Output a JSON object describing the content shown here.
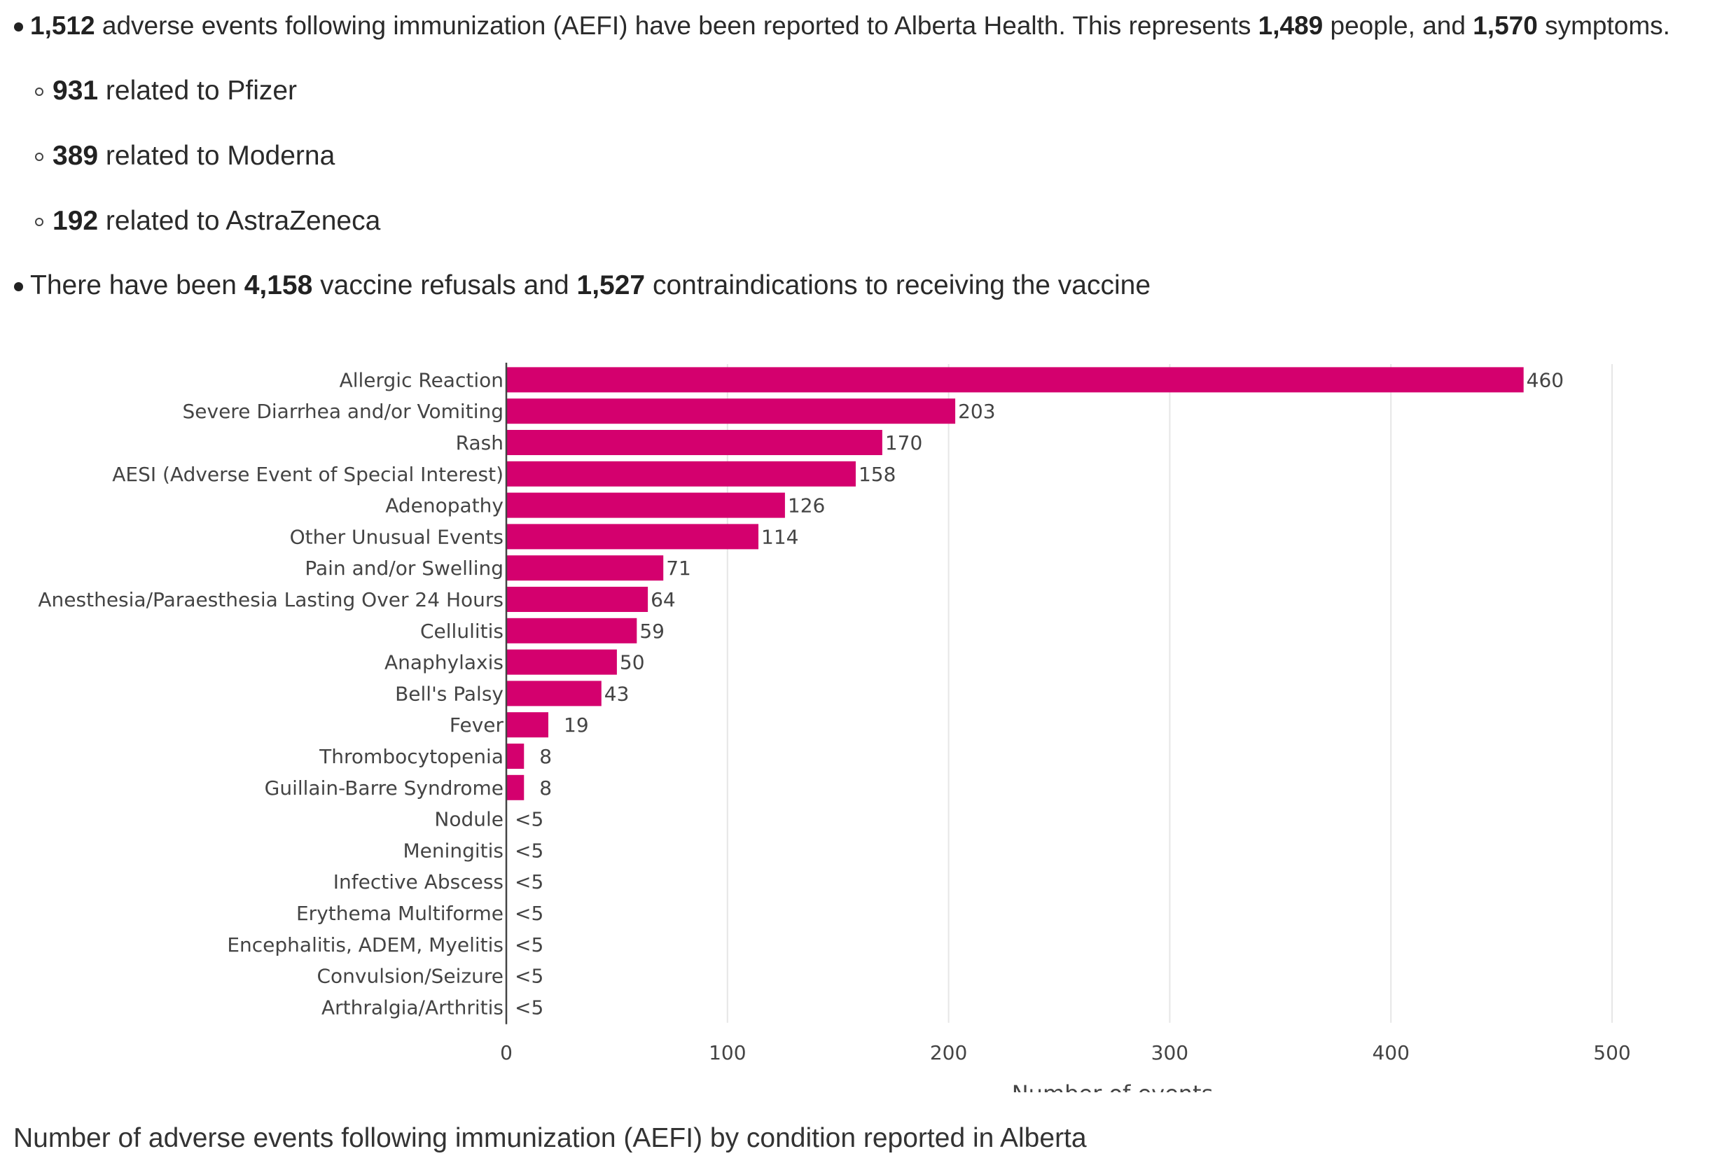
{
  "bullets": {
    "main1": {
      "n1": "1,512",
      "t1": " adverse events following immunization (AEFI) have been reported to Alberta Health. This represents ",
      "n2": "1,489",
      "t2": " people, and ",
      "n3": "1,570",
      "t3": " symptoms."
    },
    "sub": [
      {
        "n": "931",
        "t": " related to Pfizer"
      },
      {
        "n": "389",
        "t": " related to Moderna"
      },
      {
        "n": "192",
        "t": " related to AstraZeneca"
      }
    ],
    "main2": {
      "t0": "There have been ",
      "n1": "4,158",
      "t1": " vaccine refusals and ",
      "n2": "1,527",
      "t2": " contraindications to receiving the vaccine"
    }
  },
  "colors": {
    "bar": "#d4006e",
    "grid": "#e6e6e6",
    "text": "#444444"
  },
  "caption": "Number of adverse events following immunization (AEFI) by condition reported in Alberta",
  "chart_data": {
    "type": "bar",
    "orientation": "horizontal",
    "categories": [
      "Allergic Reaction",
      "Severe Diarrhea and/or Vomiting",
      "Rash",
      "AESI (Adverse Event of Special Interest)",
      "Adenopathy",
      "Other Unusual Events",
      "Pain and/or Swelling",
      "Anesthesia/Paraesthesia Lasting Over 24 Hours",
      "Cellulitis",
      "Anaphylaxis",
      "Bell's Palsy",
      "Fever",
      "Thrombocytopenia",
      "Guillain-Barre Syndrome",
      "Nodule",
      "Meningitis",
      "Infective Abscess",
      "Erythema Multiforme",
      "Encephalitis, ADEM, Myelitis",
      "Convulsion/Seizure",
      "Arthralgia/Arthritis"
    ],
    "values": [
      460,
      203,
      170,
      158,
      126,
      114,
      71,
      64,
      59,
      50,
      43,
      19,
      8,
      8,
      0,
      0,
      0,
      0,
      0,
      0,
      0
    ],
    "value_labels": [
      "460",
      "203",
      "170",
      "158",
      "126",
      "114",
      "71",
      "64",
      "59",
      "50",
      "43",
      "19",
      "8",
      "8",
      "<5",
      "<5",
      "<5",
      "<5",
      "<5",
      "<5",
      "<5"
    ],
    "xlabel": "Number of events",
    "ylabel": "",
    "xlim": [
      0,
      500
    ],
    "xticks": [
      0,
      100,
      200,
      300,
      400,
      500
    ],
    "grid": true,
    "legend": "none"
  }
}
